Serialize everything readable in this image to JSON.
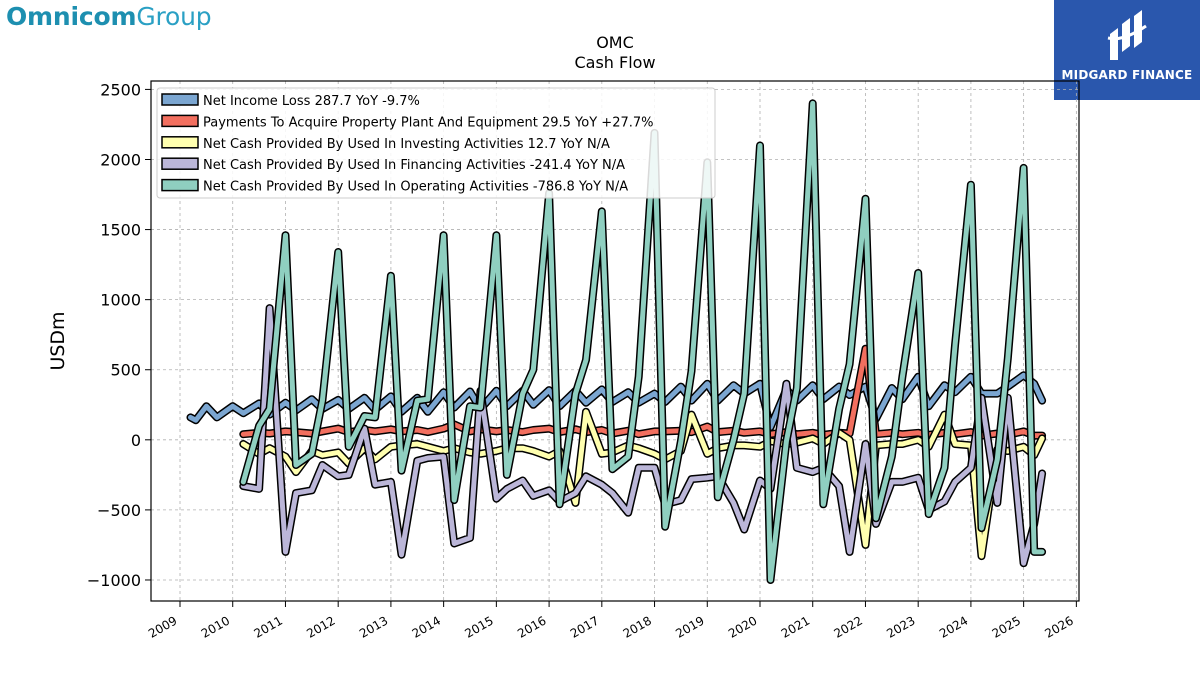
{
  "branding": {
    "company_bold": "Omnicom",
    "company_light": "Group",
    "publisher": "MIDGARD FINANCE"
  },
  "chart_data": {
    "type": "line",
    "title": "OMC",
    "subtitle": "Cash Flow",
    "ylabel": "USDm",
    "xlabel": "",
    "ylim": [
      -1150,
      2560
    ],
    "xlim": [
      2008.45,
      2026.05
    ],
    "yticks": [
      -1000,
      -500,
      0,
      500,
      1000,
      1500,
      2000,
      2500
    ],
    "xticks": [
      2009,
      2010,
      2011,
      2012,
      2013,
      2014,
      2015,
      2016,
      2017,
      2018,
      2019,
      2020,
      2021,
      2022,
      2023,
      2024,
      2025,
      2026
    ],
    "grid": true,
    "legend_position": "top-left",
    "series": [
      {
        "name": "Net Income Loss  287.7 YoY -9.7%",
        "color": "#7ba6d1",
        "x": [
          2009.2,
          2009.3,
          2009.5,
          2009.7,
          2010.0,
          2010.2,
          2010.5,
          2010.7,
          2011.0,
          2011.2,
          2011.5,
          2011.7,
          2012.0,
          2012.2,
          2012.5,
          2012.7,
          2013.0,
          2013.2,
          2013.5,
          2013.7,
          2014.0,
          2014.2,
          2014.5,
          2014.7,
          2015.0,
          2015.2,
          2015.5,
          2015.7,
          2016.0,
          2016.2,
          2016.5,
          2016.7,
          2017.0,
          2017.2,
          2017.5,
          2017.7,
          2018.0,
          2018.2,
          2018.5,
          2018.7,
          2019.0,
          2019.2,
          2019.5,
          2019.7,
          2020.0,
          2020.2,
          2020.5,
          2020.7,
          2021.0,
          2021.2,
          2021.5,
          2021.7,
          2022.0,
          2022.2,
          2022.5,
          2022.7,
          2023.0,
          2023.2,
          2023.5,
          2023.7,
          2024.0,
          2024.2,
          2024.5,
          2024.7,
          2025.0,
          2025.2,
          2025.35
        ],
        "y": [
          160,
          140,
          240,
          160,
          240,
          190,
          260,
          180,
          265,
          210,
          290,
          220,
          285,
          220,
          300,
          215,
          310,
          200,
          300,
          200,
          340,
          230,
          345,
          220,
          350,
          240,
          350,
          250,
          355,
          240,
          350,
          265,
          360,
          270,
          340,
          265,
          330,
          270,
          380,
          280,
          400,
          280,
          390,
          330,
          400,
          90,
          360,
          280,
          390,
          290,
          380,
          320,
          380,
          150,
          370,
          290,
          450,
          240,
          390,
          340,
          450,
          330,
          330,
          380,
          460,
          400,
          280
        ]
      },
      {
        "name": "Payments To Acquire Property Plant And Equipment  29.5 YoY +27.7%",
        "color": "#f26f5f",
        "x": [
          2010.2,
          2010.5,
          2010.7,
          2011.0,
          2011.2,
          2011.5,
          2011.7,
          2012.0,
          2012.2,
          2012.5,
          2012.7,
          2013.0,
          2013.2,
          2013.5,
          2013.7,
          2014.0,
          2014.2,
          2014.5,
          2014.7,
          2015.0,
          2015.2,
          2015.5,
          2015.7,
          2016.0,
          2016.2,
          2016.5,
          2016.7,
          2017.0,
          2017.2,
          2017.5,
          2017.7,
          2018.0,
          2018.2,
          2018.5,
          2018.7,
          2019.0,
          2019.2,
          2019.5,
          2019.7,
          2020.0,
          2020.2,
          2020.5,
          2020.7,
          2021.0,
          2021.2,
          2021.5,
          2021.7,
          2022.0,
          2022.2,
          2022.5,
          2022.7,
          2023.0,
          2023.2,
          2023.5,
          2023.7,
          2024.0,
          2024.2,
          2024.5,
          2024.7,
          2025.0,
          2025.2,
          2025.35
        ],
        "y": [
          40,
          50,
          45,
          60,
          55,
          45,
          60,
          80,
          55,
          70,
          60,
          75,
          60,
          70,
          55,
          80,
          110,
          60,
          75,
          60,
          70,
          55,
          70,
          80,
          55,
          75,
          55,
          70,
          45,
          65,
          40,
          60,
          60,
          65,
          55,
          95,
          55,
          65,
          50,
          60,
          40,
          55,
          40,
          50,
          35,
          50,
          45,
          650,
          40,
          50,
          40,
          50,
          35,
          50,
          40,
          55,
          30,
          45,
          35,
          60,
          30,
          30
        ]
      },
      {
        "name": "Net Cash Provided By Used In Investing Activities  12.7 YoY N/A",
        "color": "#ffffaf",
        "x": [
          2010.2,
          2010.5,
          2010.7,
          2011.0,
          2011.2,
          2011.5,
          2011.7,
          2012.0,
          2012.2,
          2012.5,
          2012.7,
          2013.0,
          2013.2,
          2013.5,
          2013.7,
          2014.0,
          2014.2,
          2014.5,
          2014.7,
          2015.0,
          2015.2,
          2015.5,
          2015.7,
          2016.0,
          2016.2,
          2016.5,
          2016.7,
          2017.0,
          2017.2,
          2017.5,
          2017.7,
          2018.0,
          2018.2,
          2018.5,
          2018.7,
          2019.0,
          2019.2,
          2019.5,
          2019.7,
          2020.0,
          2020.2,
          2020.5,
          2020.7,
          2021.0,
          2021.2,
          2021.5,
          2021.7,
          2022.0,
          2022.2,
          2022.5,
          2022.7,
          2023.0,
          2023.2,
          2023.5,
          2023.7,
          2024.0,
          2024.2,
          2024.5,
          2024.7,
          2025.0,
          2025.2,
          2025.35
        ],
        "y": [
          -30,
          -100,
          -60,
          -120,
          -230,
          -80,
          -110,
          -90,
          -170,
          -60,
          -140,
          -50,
          -40,
          -30,
          -50,
          -80,
          -60,
          -90,
          -100,
          -80,
          -60,
          -60,
          -80,
          -120,
          -80,
          -450,
          200,
          -100,
          -90,
          -40,
          -60,
          -100,
          -140,
          -80,
          180,
          -100,
          -60,
          -40,
          -40,
          -50,
          -10,
          -30,
          -20,
          10,
          -30,
          50,
          0,
          -750,
          -40,
          -30,
          -30,
          0,
          -50,
          180,
          -30,
          -40,
          -830,
          -70,
          -80,
          -50,
          -110,
          10
        ]
      },
      {
        "name": "Net Cash Provided By Used In Financing Activities  -241.4 YoY N/A",
        "color": "#bbb6d8",
        "x": [
          2010.2,
          2010.5,
          2010.7,
          2011.0,
          2011.2,
          2011.5,
          2011.7,
          2012.0,
          2012.2,
          2012.5,
          2012.7,
          2013.0,
          2013.2,
          2013.5,
          2013.7,
          2014.0,
          2014.2,
          2014.5,
          2014.7,
          2015.0,
          2015.2,
          2015.5,
          2015.7,
          2016.0,
          2016.2,
          2016.5,
          2016.7,
          2017.0,
          2017.2,
          2017.5,
          2017.7,
          2018.0,
          2018.2,
          2018.5,
          2018.7,
          2019.0,
          2019.2,
          2019.5,
          2019.7,
          2020.0,
          2020.2,
          2020.5,
          2020.7,
          2021.0,
          2021.2,
          2021.5,
          2021.7,
          2022.0,
          2022.2,
          2022.5,
          2022.7,
          2023.0,
          2023.2,
          2023.5,
          2023.7,
          2024.0,
          2024.2,
          2024.5,
          2024.7,
          2025.0,
          2025.2,
          2025.35
        ],
        "y": [
          -330,
          -350,
          940,
          -800,
          -380,
          -360,
          -180,
          -260,
          -250,
          80,
          -320,
          -300,
          -820,
          -150,
          -130,
          -120,
          -740,
          -700,
          350,
          -420,
          -350,
          -290,
          -400,
          -360,
          -440,
          -380,
          -260,
          -320,
          -380,
          -520,
          -200,
          -200,
          -460,
          -430,
          -280,
          -270,
          -260,
          -450,
          -640,
          -290,
          -350,
          400,
          -200,
          -230,
          -200,
          -330,
          -800,
          -30,
          -600,
          -300,
          -300,
          -270,
          -500,
          -440,
          -300,
          -200,
          300,
          -450,
          300,
          -880,
          -600,
          -240
        ]
      },
      {
        "name": "Net Cash Provided By Used In Operating Activities  -786.8 YoY N/A",
        "color": "#8fcfc0",
        "x": [
          2010.2,
          2010.5,
          2010.7,
          2011.0,
          2011.2,
          2011.5,
          2011.7,
          2012.0,
          2012.2,
          2012.5,
          2012.7,
          2013.0,
          2013.2,
          2013.5,
          2013.7,
          2014.0,
          2014.2,
          2014.5,
          2014.7,
          2015.0,
          2015.2,
          2015.5,
          2015.7,
          2016.0,
          2016.2,
          2016.5,
          2016.7,
          2017.0,
          2017.2,
          2017.5,
          2017.7,
          2018.0,
          2018.2,
          2018.5,
          2018.7,
          2019.0,
          2019.2,
          2019.5,
          2019.7,
          2020.0,
          2020.2,
          2020.5,
          2020.7,
          2021.0,
          2021.2,
          2021.5,
          2021.7,
          2022.0,
          2022.2,
          2022.5,
          2022.7,
          2023.0,
          2023.2,
          2023.5,
          2023.7,
          2024.0,
          2024.2,
          2024.5,
          2024.7,
          2025.0,
          2025.2,
          2025.35
        ],
        "y": [
          -300,
          100,
          220,
          1460,
          -180,
          -100,
          280,
          1340,
          -50,
          170,
          160,
          1170,
          -220,
          280,
          290,
          1460,
          -430,
          240,
          230,
          1460,
          -250,
          330,
          500,
          1760,
          -460,
          330,
          570,
          1630,
          -210,
          -120,
          450,
          2190,
          -620,
          -10,
          490,
          1980,
          -410,
          0,
          330,
          2100,
          -1000,
          -10,
          370,
          2400,
          -460,
          220,
          540,
          1720,
          -560,
          -120,
          450,
          1190,
          -530,
          -200,
          680,
          1820,
          -630,
          -140,
          580,
          1940,
          -800,
          -800
        ]
      }
    ]
  }
}
